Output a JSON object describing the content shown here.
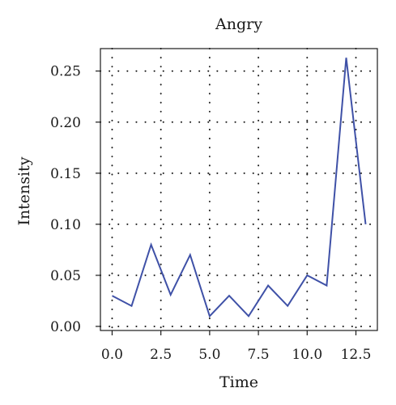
{
  "chart_data": {
    "type": "line",
    "title": "Angry",
    "xlabel": "Time",
    "ylabel": "Intensity",
    "x": [
      0,
      1,
      2,
      3,
      4,
      5,
      6,
      7,
      8,
      9,
      10,
      11,
      12,
      13
    ],
    "series": [
      {
        "values": [
          0.03,
          0.02,
          0.08,
          0.031,
          0.07,
          0.01,
          0.03,
          0.01,
          0.04,
          0.02,
          0.05,
          0.04,
          0.263,
          0.1
        ]
      }
    ],
    "xlim": [
      -0.6,
      13.6
    ],
    "ylim": [
      -0.004,
      0.272
    ],
    "xticks": [
      0.0,
      2.5,
      5.0,
      7.5,
      10.0,
      12.5
    ],
    "xtick_labels": [
      "0.0",
      "2.5",
      "5.0",
      "7.5",
      "10.0",
      "12.5"
    ],
    "yticks": [
      0.0,
      0.05,
      0.1,
      0.15,
      0.2,
      0.25
    ],
    "ytick_labels": [
      "0.00",
      "0.05",
      "0.10",
      "0.15",
      "0.20",
      "0.25"
    ],
    "grid": true,
    "line_color": "#3f51a7"
  }
}
